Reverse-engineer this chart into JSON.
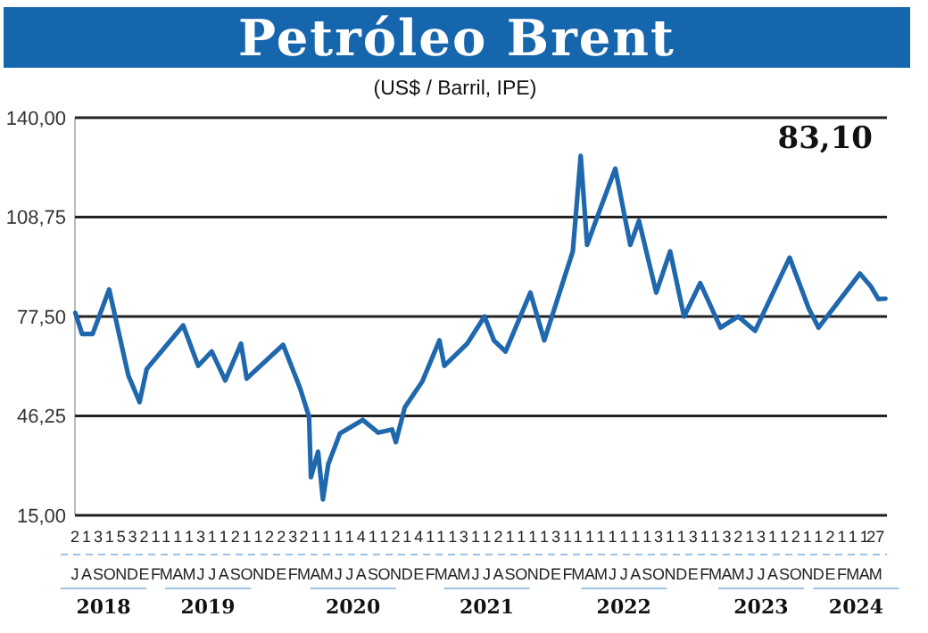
{
  "chart_data": {
    "type": "line",
    "title": "Petróleo Brent",
    "subtitle": "(US$ / Barril, IPE)",
    "annotations": [
      "83,10",
      "J",
      "A",
      "S",
      "O",
      "N",
      "D",
      "E",
      "F",
      "M",
      "A",
      "M",
      "J",
      "J",
      "A",
      "S",
      "O",
      "N",
      "D",
      "E",
      "F",
      "M",
      "A",
      "M",
      "J",
      "J",
      "A",
      "S",
      "O",
      "N",
      "D",
      "E",
      "F",
      "M",
      "A",
      "M",
      "J",
      "J",
      "A",
      "S",
      "O",
      "N",
      "D",
      "E",
      "F",
      "M",
      "A",
      "M",
      "J",
      "J",
      "A",
      "S",
      "O",
      "N",
      "D",
      "E",
      "F",
      "M",
      "A",
      "M",
      "J",
      "J",
      "A",
      "S",
      "O",
      "N",
      "D",
      "E",
      "F",
      "M",
      "A",
      "M"
    ],
    "series": [
      {
        "color": "#1f68ad",
        "x": [
          "2018-07-02",
          "2018-07-20",
          "2018-08-17",
          "2018-09-30",
          "2018-11-20",
          "2018-12-20",
          "2019-01-08",
          "2019-04-15",
          "2019-05-25",
          "2019-06-30",
          "2019-08-05",
          "2019-09-16",
          "2019-10-01",
          "2020-01-06",
          "2020-02-20",
          "2020-03-15",
          "2020-03-20",
          "2020-04-08",
          "2020-04-21",
          "2020-05-05",
          "2020-06-05",
          "2020-08-05",
          "2020-09-15",
          "2020-10-22",
          "2020-11-01",
          "2020-11-25",
          "2021-01-10",
          "2021-02-25",
          "2021-03-10",
          "2021-05-10",
          "2021-06-25",
          "2021-07-20",
          "2021-08-20",
          "2021-10-25",
          "2021-12-01",
          "2022-02-15",
          "2022-03-08",
          "2022-03-25",
          "2022-04-28",
          "2022-06-08",
          "2022-07-18",
          "2022-08-10",
          "2022-09-25",
          "2022-11-01",
          "2022-12-08",
          "2023-01-20",
          "2023-03-15",
          "2023-05-01",
          "2023-06-15",
          "2023-09-15",
          "2023-11-05",
          "2023-12-01",
          "2024-01-25",
          "2024-03-20",
          "2024-04-18",
          "2024-05-08",
          "2024-05-27"
        ],
        "values": [
          78.6,
          72,
          72,
          86,
          59,
          50.6,
          61,
          74.7,
          62,
          66.5,
          57.4,
          69,
          58,
          68.6,
          55,
          46,
          27,
          35,
          20,
          31,
          40.7,
          45,
          41,
          42,
          38,
          49,
          57,
          70,
          62,
          69,
          77.5,
          70,
          66.5,
          85,
          70,
          98,
          128,
          100,
          111,
          124,
          100,
          107.6,
          85,
          98,
          77.5,
          88,
          74,
          77.5,
          73,
          96,
          80,
          74,
          82.5,
          91,
          87,
          83,
          83.1
        ]
      }
    ],
    "xlim": [
      "2018-07-01",
      "2024-05-31"
    ],
    "xticks": [
      {
        "value": "2018-09-15",
        "label": "2018"
      },
      {
        "value": "2019-06-20",
        "label": "2019"
      },
      {
        "value": "2020-07-10",
        "label": "2020"
      },
      {
        "value": "2021-07-01",
        "label": "2021"
      },
      {
        "value": "2022-07-01",
        "label": "2022"
      },
      {
        "value": "2023-07-01",
        "label": "2023"
      },
      {
        "value": "2024-03-10",
        "label": "2024"
      }
    ],
    "x2lim": [
      "2018-07-01",
      "2024-05-31"
    ],
    "x2ticks": [
      {
        "value": "2018-07-01",
        "label": "2"
      },
      {
        "value": "2018-08-01",
        "label": "1"
      },
      {
        "value": "2018-09-01",
        "label": "3"
      },
      {
        "value": "2018-10-01",
        "label": "1"
      },
      {
        "value": "2018-11-01",
        "label": "5"
      },
      {
        "value": "2018-12-01",
        "label": "3"
      },
      {
        "value": "2019-01-01",
        "label": "2"
      },
      {
        "value": "2019-02-01",
        "label": "1"
      },
      {
        "value": "2019-03-01",
        "label": "1"
      },
      {
        "value": "2019-04-01",
        "label": "1"
      },
      {
        "value": "2019-05-01",
        "label": "1"
      },
      {
        "value": "2019-06-01",
        "label": "3"
      },
      {
        "value": "2019-07-01",
        "label": "1"
      },
      {
        "value": "2019-08-01",
        "label": "1"
      },
      {
        "value": "2019-09-01",
        "label": "2"
      },
      {
        "value": "2019-10-01",
        "label": "1"
      },
      {
        "value": "2019-11-01",
        "label": "1"
      },
      {
        "value": "2019-12-01",
        "label": "2"
      },
      {
        "value": "2020-01-01",
        "label": "2"
      },
      {
        "value": "2020-02-01",
        "label": "3"
      },
      {
        "value": "2020-03-01",
        "label": "2"
      },
      {
        "value": "2020-04-01",
        "label": "1"
      },
      {
        "value": "2020-05-01",
        "label": "1"
      },
      {
        "value": "2020-06-01",
        "label": "1"
      },
      {
        "value": "2020-07-01",
        "label": "1"
      },
      {
        "value": "2020-08-01",
        "label": "4"
      },
      {
        "value": "2020-09-01",
        "label": "1"
      },
      {
        "value": "2020-10-01",
        "label": "1"
      },
      {
        "value": "2020-11-01",
        "label": "2"
      },
      {
        "value": "2020-12-01",
        "label": "1"
      },
      {
        "value": "2021-01-01",
        "label": "4"
      },
      {
        "value": "2021-02-01",
        "label": "1"
      },
      {
        "value": "2021-03-01",
        "label": "1"
      },
      {
        "value": "2021-04-01",
        "label": "1"
      },
      {
        "value": "2021-05-01",
        "label": "3"
      },
      {
        "value": "2021-06-01",
        "label": "1"
      },
      {
        "value": "2021-07-01",
        "label": "1"
      },
      {
        "value": "2021-08-01",
        "label": "2"
      },
      {
        "value": "2021-09-01",
        "label": "1"
      },
      {
        "value": "2021-10-01",
        "label": "1"
      },
      {
        "value": "2021-11-01",
        "label": "1"
      },
      {
        "value": "2021-12-01",
        "label": "1"
      },
      {
        "value": "2022-01-01",
        "label": "3"
      },
      {
        "value": "2022-02-01",
        "label": "1"
      },
      {
        "value": "2022-03-01",
        "label": "1"
      },
      {
        "value": "2022-04-01",
        "label": "1"
      },
      {
        "value": "2022-05-01",
        "label": "1"
      },
      {
        "value": "2022-06-01",
        "label": "1"
      },
      {
        "value": "2022-07-01",
        "label": "1"
      },
      {
        "value": "2022-08-01",
        "label": "1"
      },
      {
        "value": "2022-09-01",
        "label": "1"
      },
      {
        "value": "2022-10-01",
        "label": "3"
      },
      {
        "value": "2022-11-01",
        "label": "1"
      },
      {
        "value": "2022-12-01",
        "label": "1"
      },
      {
        "value": "2023-01-01",
        "label": "3"
      },
      {
        "value": "2023-02-01",
        "label": "1"
      },
      {
        "value": "2023-03-01",
        "label": "1"
      },
      {
        "value": "2023-04-01",
        "label": "3"
      },
      {
        "value": "2023-05-01",
        "label": "2"
      },
      {
        "value": "2023-06-01",
        "label": "1"
      },
      {
        "value": "2023-07-01",
        "label": "3"
      },
      {
        "value": "2023-08-01",
        "label": "1"
      },
      {
        "value": "2023-09-01",
        "label": "1"
      },
      {
        "value": "2023-10-01",
        "label": "2"
      },
      {
        "value": "2023-11-01",
        "label": "1"
      },
      {
        "value": "2023-12-01",
        "label": "1"
      },
      {
        "value": "2024-01-01",
        "label": "2"
      },
      {
        "value": "2024-02-01",
        "label": "1"
      },
      {
        "value": "2024-03-01",
        "label": "1"
      },
      {
        "value": "2024-04-01",
        "label": "1"
      },
      {
        "value": "2024-05-01",
        "label": "27"
      }
    ],
    "ylim": [
      15,
      140
    ],
    "yticks": [
      {
        "value": 15,
        "label": "15,00"
      },
      {
        "value": 46.25,
        "label": "46,25"
      },
      {
        "value": 77.5,
        "label": "77,50"
      },
      {
        "value": 108.75,
        "label": "108,75"
      },
      {
        "value": 140,
        "label": "140,00"
      }
    ],
    "grid": "y",
    "marker": "none",
    "line_style": "solid"
  }
}
